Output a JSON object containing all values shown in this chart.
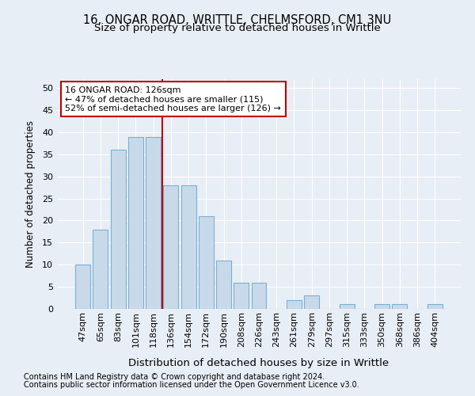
{
  "title1": "16, ONGAR ROAD, WRITTLE, CHELMSFORD, CM1 3NU",
  "title2": "Size of property relative to detached houses in Writtle",
  "xlabel": "Distribution of detached houses by size in Writtle",
  "ylabel": "Number of detached properties",
  "categories": [
    "47sqm",
    "65sqm",
    "83sqm",
    "101sqm",
    "118sqm",
    "136sqm",
    "154sqm",
    "172sqm",
    "190sqm",
    "208sqm",
    "226sqm",
    "243sqm",
    "261sqm",
    "279sqm",
    "297sqm",
    "315sqm",
    "333sqm",
    "350sqm",
    "368sqm",
    "386sqm",
    "404sqm"
  ],
  "values": [
    10,
    18,
    36,
    39,
    39,
    28,
    28,
    21,
    11,
    6,
    6,
    0,
    2,
    3,
    0,
    1,
    0,
    1,
    1,
    0,
    1
  ],
  "bar_color": "#c8daea",
  "bar_edge_color": "#7bafd4",
  "vline_color": "#c00000",
  "vline_x": 4.5,
  "annotation_text": "16 ONGAR ROAD: 126sqm\n← 47% of detached houses are smaller (115)\n52% of semi-detached houses are larger (126) →",
  "annotation_box_facecolor": "#ffffff",
  "annotation_box_edgecolor": "#c00000",
  "ylim": [
    0,
    52
  ],
  "yticks": [
    0,
    5,
    10,
    15,
    20,
    25,
    30,
    35,
    40,
    45,
    50
  ],
  "bg_color": "#e8eef5",
  "plot_bg_color": "#e8eef5",
  "grid_color": "#ffffff",
  "footer1": "Contains HM Land Registry data © Crown copyright and database right 2024.",
  "footer2": "Contains public sector information licensed under the Open Government Licence v3.0.",
  "title1_fontsize": 10.5,
  "title2_fontsize": 9.5,
  "tick_fontsize": 8,
  "xlabel_fontsize": 9.5,
  "ylabel_fontsize": 8.5,
  "annotation_fontsize": 8,
  "footer_fontsize": 7
}
